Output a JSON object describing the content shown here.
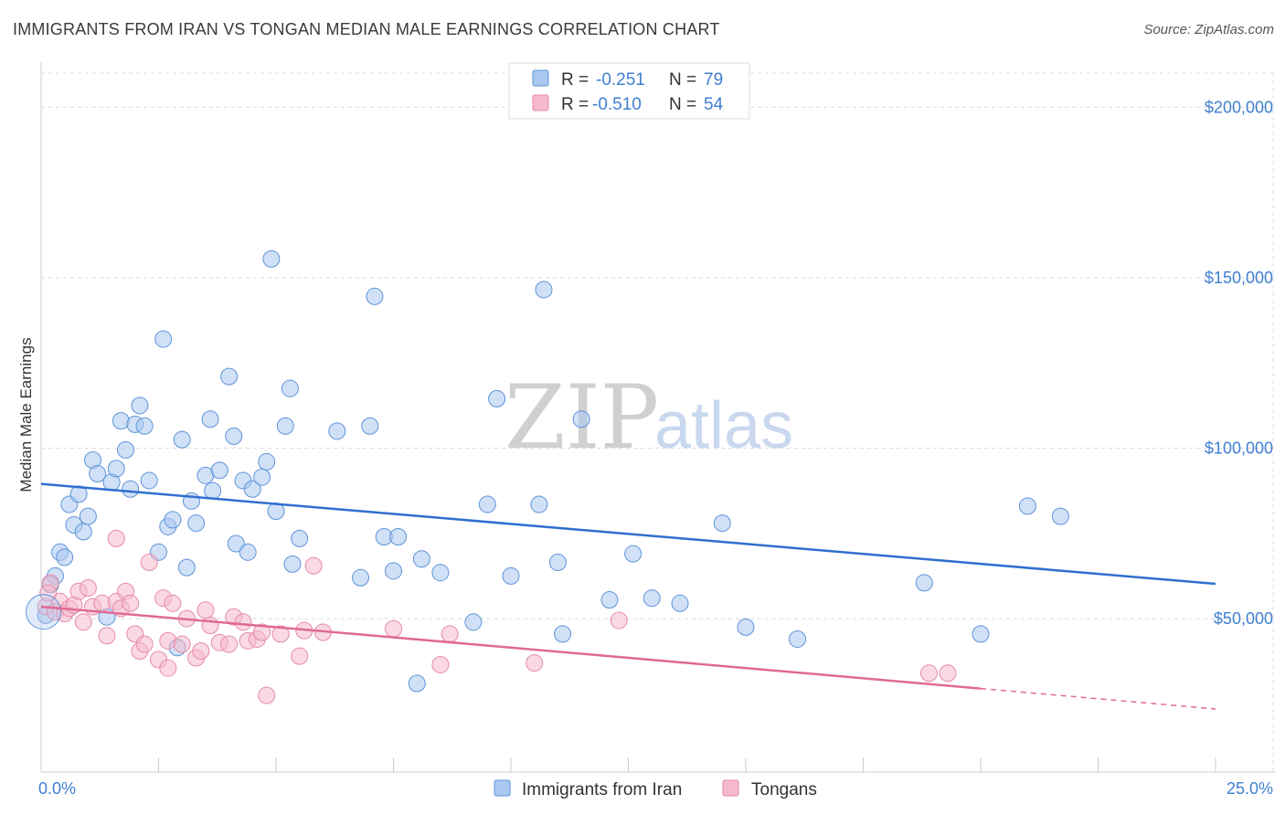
{
  "title": "IMMIGRANTS FROM IRAN VS TONGAN MEDIAN MALE EARNINGS CORRELATION CHART",
  "source": "Source: ZipAtlas.com",
  "watermark": {
    "zip": "ZIP",
    "atlas": "atlas"
  },
  "legend": {
    "rows": [
      {
        "r_label": "R =",
        "r_value": "-0.251",
        "n_label": "N =",
        "n_value": "79",
        "color": "#a9c8f0",
        "stroke": "#5e93d8"
      },
      {
        "r_label": "R =",
        "r_value": "-0.510",
        "n_label": "N =",
        "n_value": "54",
        "color": "#f6b9cc",
        "stroke": "#e68aa8"
      }
    ]
  },
  "bottom_legend": [
    {
      "label": "Immigrants from Iran",
      "color": "#a9c8f0",
      "stroke": "#5e93d8"
    },
    {
      "label": "Tongans",
      "color": "#f6b9cc",
      "stroke": "#e68aa8"
    }
  ],
  "chart_data": {
    "type": "scatter",
    "title": "IMMIGRANTS FROM IRAN VS TONGAN MEDIAN MALE EARNINGS CORRELATION CHART",
    "xlabel": "",
    "ylabel": "Median Male Earnings",
    "xlim": [
      0,
      25
    ],
    "ylim": [
      5000,
      210000
    ],
    "x_tick_labels": [
      "0.0%",
      "25.0%"
    ],
    "y_ticks": [
      50000,
      100000,
      150000,
      200000
    ],
    "y_tick_labels": [
      "$50,000",
      "$100,000",
      "$150,000",
      "$200,000"
    ],
    "grid": true,
    "series": [
      {
        "name": "Immigrants from Iran",
        "color": "#5e93d8",
        "fill": "#a9c8f0",
        "trend": {
          "x": [
            0,
            25
          ],
          "y": [
            89500,
            60200
          ]
        },
        "points": [
          [
            0.1,
            51000
          ],
          [
            0.3,
            62500
          ],
          [
            0.4,
            69500
          ],
          [
            0.5,
            68000
          ],
          [
            0.6,
            83500
          ],
          [
            0.7,
            77500
          ],
          [
            0.8,
            86500
          ],
          [
            0.9,
            75500
          ],
          [
            1.0,
            80000
          ],
          [
            1.1,
            96500
          ],
          [
            1.2,
            92500
          ],
          [
            1.5,
            90000
          ],
          [
            1.6,
            94000
          ],
          [
            1.7,
            108000
          ],
          [
            1.8,
            99500
          ],
          [
            1.9,
            88000
          ],
          [
            2.0,
            107000
          ],
          [
            2.1,
            112500
          ],
          [
            2.2,
            106500
          ],
          [
            2.3,
            90500
          ],
          [
            2.5,
            69500
          ],
          [
            2.6,
            132000
          ],
          [
            2.7,
            77000
          ],
          [
            2.8,
            79000
          ],
          [
            2.9,
            41500
          ],
          [
            3.0,
            102500
          ],
          [
            3.1,
            65000
          ],
          [
            3.2,
            84500
          ],
          [
            3.3,
            78000
          ],
          [
            3.5,
            92000
          ],
          [
            3.6,
            108500
          ],
          [
            3.65,
            87500
          ],
          [
            3.8,
            93500
          ],
          [
            4.0,
            121000
          ],
          [
            4.1,
            103500
          ],
          [
            4.15,
            72000
          ],
          [
            4.3,
            90500
          ],
          [
            4.4,
            69500
          ],
          [
            4.5,
            88000
          ],
          [
            4.7,
            91500
          ],
          [
            4.8,
            96000
          ],
          [
            4.9,
            155500
          ],
          [
            5.0,
            81500
          ],
          [
            5.2,
            106500
          ],
          [
            5.3,
            117500
          ],
          [
            5.35,
            66000
          ],
          [
            5.5,
            73500
          ],
          [
            6.3,
            105000
          ],
          [
            6.8,
            62000
          ],
          [
            7.0,
            106500
          ],
          [
            7.1,
            144500
          ],
          [
            7.3,
            74000
          ],
          [
            7.5,
            64000
          ],
          [
            7.6,
            74000
          ],
          [
            8.1,
            67500
          ],
          [
            8.5,
            63500
          ],
          [
            9.2,
            49000
          ],
          [
            9.5,
            83500
          ],
          [
            9.7,
            114500
          ],
          [
            10.0,
            62500
          ],
          [
            10.6,
            83500
          ],
          [
            10.7,
            146500
          ],
          [
            11.0,
            66500
          ],
          [
            11.1,
            45500
          ],
          [
            11.5,
            108500
          ],
          [
            12.1,
            55500
          ],
          [
            12.6,
            69000
          ],
          [
            13.0,
            56000
          ],
          [
            13.6,
            54500
          ],
          [
            14.5,
            78000
          ],
          [
            15.0,
            47500
          ],
          [
            16.1,
            44000
          ],
          [
            18.8,
            60500
          ],
          [
            20.0,
            45500
          ],
          [
            21.0,
            83000
          ],
          [
            21.7,
            80000
          ],
          [
            8.0,
            31000
          ],
          [
            0.2,
            60000
          ],
          [
            1.4,
            50500
          ]
        ]
      },
      {
        "name": "Tongans",
        "color": "#e68aa8",
        "fill": "#f6b9cc",
        "trend": {
          "x": [
            0,
            20
          ],
          "y": [
            53500,
            29500
          ]
        },
        "trend_extension": {
          "x": [
            20,
            25
          ],
          "y": [
            29500,
            23500
          ]
        },
        "points": [
          [
            0.1,
            53500
          ],
          [
            0.2,
            60500
          ],
          [
            0.3,
            52000
          ],
          [
            0.4,
            55000
          ],
          [
            0.5,
            51500
          ],
          [
            0.6,
            53000
          ],
          [
            0.7,
            54000
          ],
          [
            0.8,
            58000
          ],
          [
            0.9,
            49000
          ],
          [
            1.0,
            59000
          ],
          [
            1.1,
            53500
          ],
          [
            1.3,
            54500
          ],
          [
            1.4,
            45000
          ],
          [
            1.6,
            55000
          ],
          [
            1.6,
            73500
          ],
          [
            1.7,
            53000
          ],
          [
            1.8,
            58000
          ],
          [
            1.9,
            54500
          ],
          [
            2.0,
            45500
          ],
          [
            2.1,
            40500
          ],
          [
            2.2,
            42500
          ],
          [
            2.3,
            66500
          ],
          [
            2.5,
            38000
          ],
          [
            2.6,
            56000
          ],
          [
            2.7,
            43500
          ],
          [
            2.7,
            35500
          ],
          [
            2.8,
            54500
          ],
          [
            3.0,
            42500
          ],
          [
            3.1,
            50000
          ],
          [
            3.3,
            38500
          ],
          [
            3.4,
            40500
          ],
          [
            3.5,
            52500
          ],
          [
            3.6,
            48000
          ],
          [
            3.8,
            43000
          ],
          [
            4.0,
            42500
          ],
          [
            4.1,
            50500
          ],
          [
            4.3,
            49000
          ],
          [
            4.4,
            43500
          ],
          [
            4.6,
            44000
          ],
          [
            4.7,
            46000
          ],
          [
            4.8,
            27500
          ],
          [
            5.1,
            45500
          ],
          [
            5.5,
            39000
          ],
          [
            5.6,
            46500
          ],
          [
            5.8,
            65500
          ],
          [
            6.0,
            46000
          ],
          [
            7.5,
            47000
          ],
          [
            8.5,
            36500
          ],
          [
            8.7,
            45500
          ],
          [
            10.5,
            37000
          ],
          [
            12.3,
            49500
          ],
          [
            18.9,
            34000
          ],
          [
            19.3,
            34000
          ],
          [
            0.15,
            57500
          ]
        ]
      }
    ]
  }
}
